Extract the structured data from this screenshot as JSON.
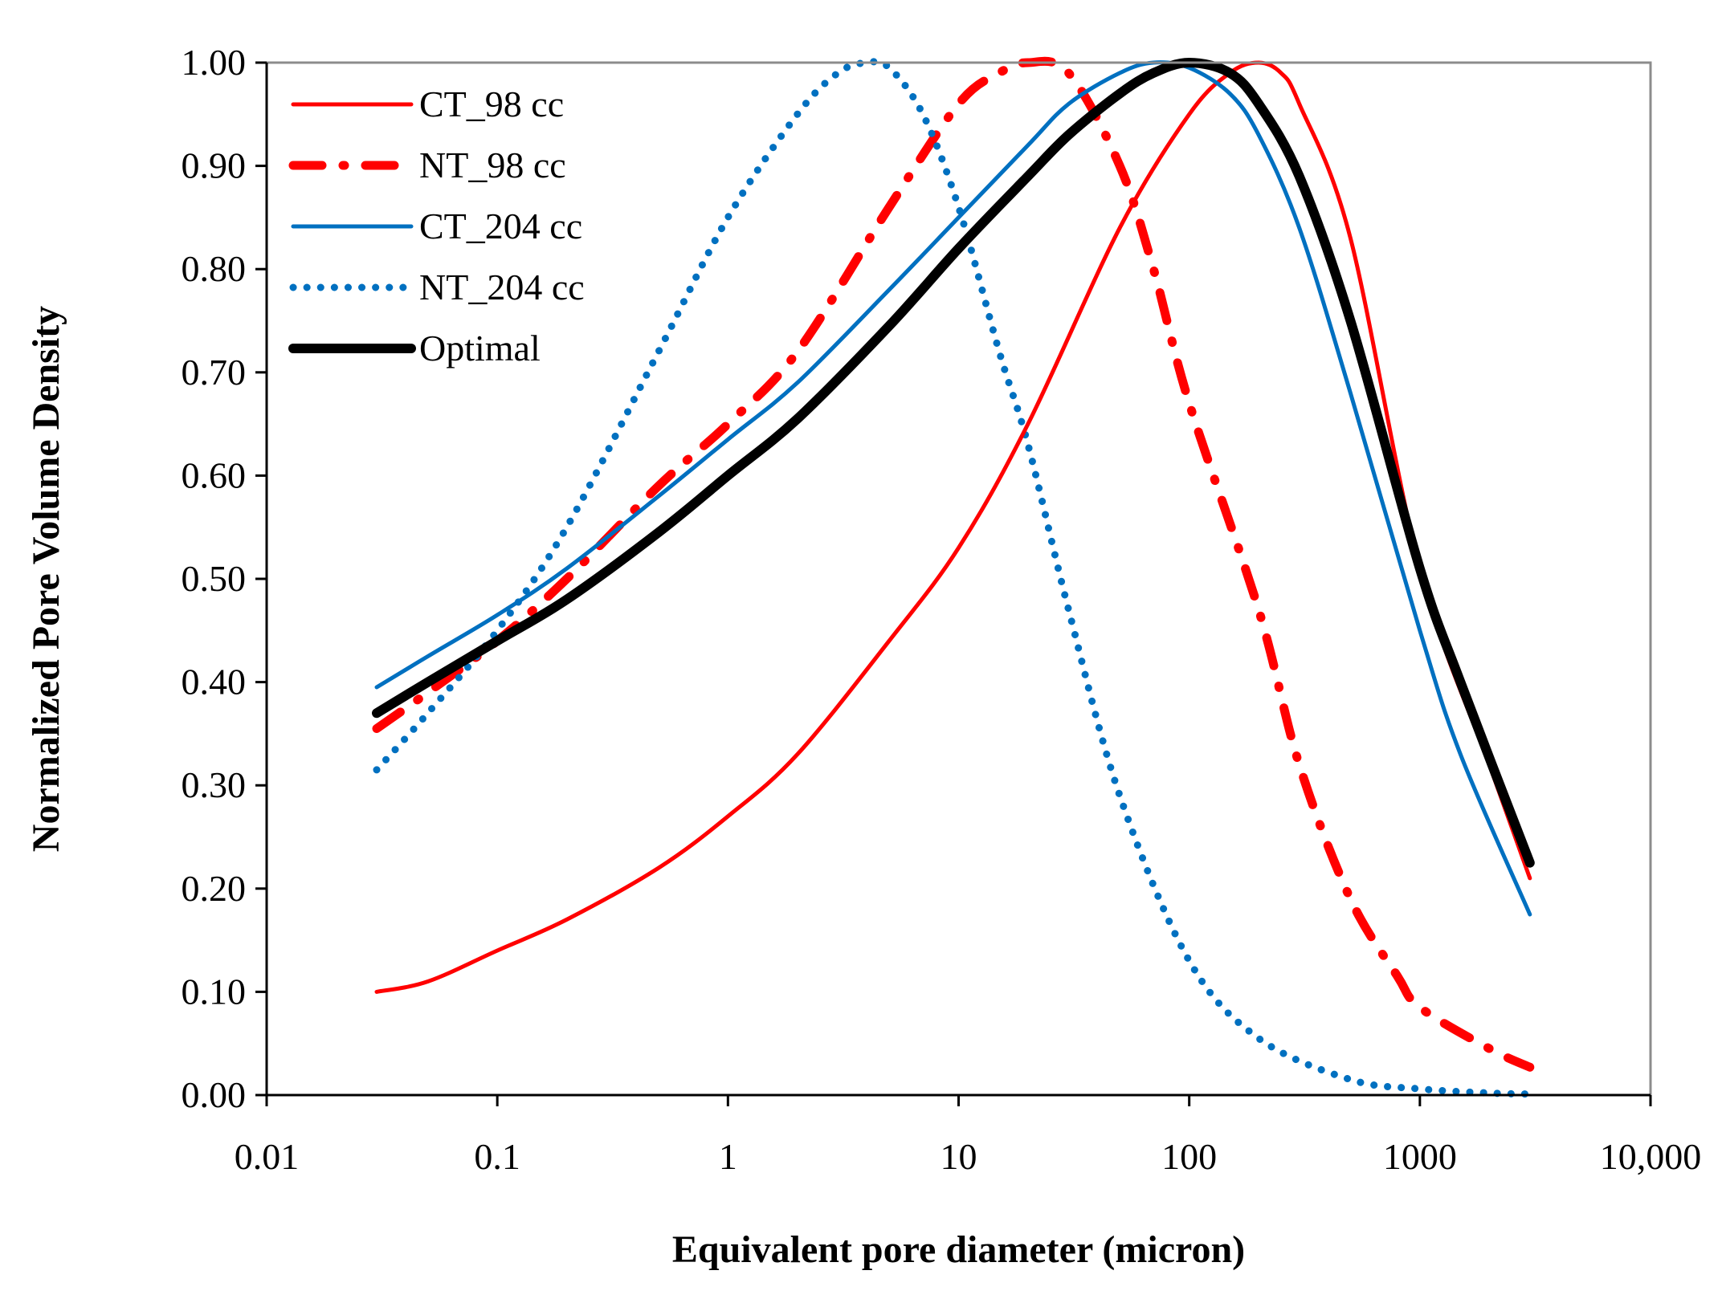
{
  "chart_data": {
    "type": "line",
    "title": "",
    "xlabel": "Equivalent pore diameter (micron)",
    "ylabel": "Normalized Pore Volume Density",
    "xscale": "log",
    "xlim": [
      0.01,
      10000
    ],
    "ylim": [
      0,
      1
    ],
    "grid": false,
    "legend_position": "top-left",
    "x_ticks": [
      {
        "value": 0.01,
        "label": "0.01"
      },
      {
        "value": 0.1,
        "label": "0.1"
      },
      {
        "value": 1,
        "label": "1"
      },
      {
        "value": 10,
        "label": "10"
      },
      {
        "value": 100,
        "label": "100"
      },
      {
        "value": 1000,
        "label": "1000"
      },
      {
        "value": 10000,
        "label": "10,000"
      }
    ],
    "y_ticks": [
      {
        "value": 0.0,
        "label": "0.00"
      },
      {
        "value": 0.1,
        "label": "0.10"
      },
      {
        "value": 0.2,
        "label": "0.20"
      },
      {
        "value": 0.3,
        "label": "0.30"
      },
      {
        "value": 0.4,
        "label": "0.40"
      },
      {
        "value": 0.5,
        "label": "0.50"
      },
      {
        "value": 0.6,
        "label": "0.60"
      },
      {
        "value": 0.7,
        "label": "0.70"
      },
      {
        "value": 0.8,
        "label": "0.80"
      },
      {
        "value": 0.9,
        "label": "0.90"
      },
      {
        "value": 1.0,
        "label": "1.00"
      }
    ],
    "series": [
      {
        "name": "CT_98 cc",
        "color": "#FF0000",
        "style": "solid",
        "x": [
          0.03,
          0.05,
          0.1,
          0.2,
          0.5,
          1,
          2,
          5,
          10,
          20,
          50,
          100,
          150,
          200,
          250,
          300,
          500,
          1000,
          2000,
          3000
        ],
        "y": [
          0.1,
          0.11,
          0.14,
          0.17,
          0.22,
          0.27,
          0.33,
          0.44,
          0.53,
          0.65,
          0.84,
          0.95,
          0.99,
          1.0,
          0.99,
          0.96,
          0.83,
          0.51,
          0.32,
          0.21
        ]
      },
      {
        "name": "NT_98 cc",
        "color": "#FF0000",
        "style": "dashdot",
        "x": [
          0.03,
          0.05,
          0.1,
          0.2,
          0.5,
          1,
          2,
          5,
          10,
          15,
          20,
          30,
          50,
          70,
          100,
          200,
          300,
          500,
          800,
          1000,
          2000,
          3000
        ],
        "y": [
          0.355,
          0.39,
          0.44,
          0.5,
          0.59,
          0.65,
          0.72,
          0.86,
          0.96,
          0.99,
          1.0,
          0.99,
          0.9,
          0.8,
          0.67,
          0.47,
          0.32,
          0.19,
          0.115,
          0.085,
          0.045,
          0.027
        ]
      },
      {
        "name": "CT_204 cc",
        "color": "#0070C0",
        "style": "solid",
        "x": [
          0.03,
          0.05,
          0.1,
          0.2,
          0.5,
          1,
          2,
          5,
          10,
          20,
          30,
          50,
          70,
          100,
          150,
          200,
          300,
          500,
          1000,
          1500,
          3000
        ],
        "y": [
          0.395,
          0.425,
          0.465,
          0.51,
          0.58,
          0.635,
          0.69,
          0.78,
          0.85,
          0.92,
          0.96,
          0.99,
          1.0,
          0.995,
          0.97,
          0.93,
          0.84,
          0.68,
          0.45,
          0.33,
          0.175
        ]
      },
      {
        "name": "NT_204 cc",
        "color": "#0070C0",
        "style": "dotted",
        "x": [
          0.03,
          0.05,
          0.1,
          0.2,
          0.5,
          1,
          2,
          3,
          4,
          5,
          7,
          10,
          15,
          20,
          30,
          50,
          100,
          200,
          500,
          1000,
          2000,
          3000
        ],
        "y": [
          0.315,
          0.37,
          0.45,
          0.55,
          0.72,
          0.85,
          0.95,
          0.99,
          1.0,
          0.995,
          0.95,
          0.86,
          0.72,
          0.63,
          0.47,
          0.29,
          0.13,
          0.055,
          0.015,
          0.006,
          0.002,
          0.001
        ]
      },
      {
        "name": "Optimal",
        "color": "#000000",
        "style": "solid-thick",
        "x": [
          0.03,
          0.05,
          0.1,
          0.2,
          0.5,
          1,
          2,
          5,
          10,
          20,
          30,
          50,
          70,
          100,
          150,
          200,
          300,
          500,
          1000,
          1500,
          3000
        ],
        "y": [
          0.37,
          0.4,
          0.44,
          0.48,
          0.545,
          0.6,
          0.655,
          0.745,
          0.82,
          0.89,
          0.93,
          0.97,
          0.99,
          1.0,
          0.99,
          0.96,
          0.89,
          0.75,
          0.51,
          0.4,
          0.225
        ]
      }
    ]
  }
}
